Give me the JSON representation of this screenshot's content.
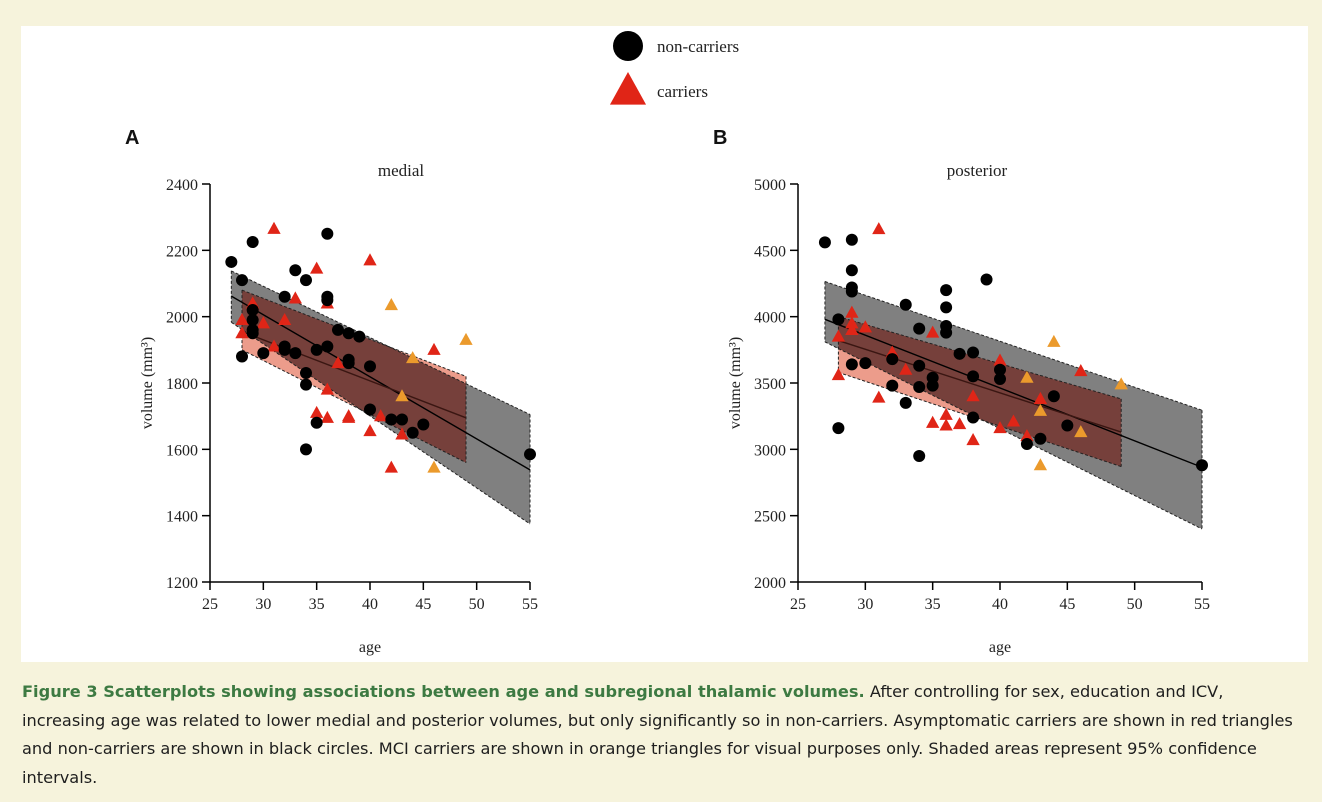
{
  "legend": {
    "items": [
      {
        "label": "non-carriers",
        "marker": "circle",
        "color": "#000000"
      },
      {
        "label": "carriers",
        "marker": "triangle",
        "color": "#e02517"
      }
    ]
  },
  "colors": {
    "non_carrier": "#000000",
    "carrier": "#e02517",
    "mci_carrier": "#eb9a2c",
    "ci_noncarrier": "#808080",
    "ci_carrier": "#ec9c8b",
    "ci_overlap": "#76403b",
    "caption_title": "#3d7a42"
  },
  "caption": {
    "title": "Figure 3 Scatterplots showing associations between age and subregional thalamic volumes.",
    "body": " After controlling for sex, education and ICV, increasing age was related to lower medial and posterior volumes, but only significantly so in non-carriers. Asymptomatic carriers are shown in red triangles and non-carriers are shown in black circles. MCI carriers are shown in orange triangles for visual purposes only. Shaded areas represent 95% confidence intervals."
  },
  "chart_data": [
    {
      "type": "scatter",
      "panel_label": "A",
      "title": "medial",
      "xlabel": "age",
      "ylabel": "volume (mm³)",
      "xlim": [
        25,
        55
      ],
      "ylim": [
        1200,
        2400
      ],
      "xticks": [
        25,
        30,
        35,
        40,
        45,
        50,
        55
      ],
      "yticks": [
        1200,
        1400,
        1600,
        1800,
        2000,
        2200,
        2400
      ],
      "series": [
        {
          "name": "non-carriers",
          "marker": "circle",
          "points": [
            [
              27,
              2165
            ],
            [
              28,
              2110
            ],
            [
              28,
              1880
            ],
            [
              29,
              2225
            ],
            [
              29,
              2020
            ],
            [
              29,
              1990
            ],
            [
              29,
              1960
            ],
            [
              29,
              1950
            ],
            [
              30,
              1890
            ],
            [
              32,
              2060
            ],
            [
              32,
              1910
            ],
            [
              32,
              1900
            ],
            [
              33,
              2140
            ],
            [
              33,
              1890
            ],
            [
              34,
              2110
            ],
            [
              34,
              1830
            ],
            [
              34,
              1795
            ],
            [
              34,
              1600
            ],
            [
              35,
              1900
            ],
            [
              35,
              1680
            ],
            [
              36,
              2250
            ],
            [
              36,
              2060
            ],
            [
              36,
              2050
            ],
            [
              36,
              1910
            ],
            [
              37,
              1960
            ],
            [
              38,
              1950
            ],
            [
              38,
              1870
            ],
            [
              38,
              1860
            ],
            [
              39,
              1940
            ],
            [
              40,
              1850
            ],
            [
              40,
              1720
            ],
            [
              42,
              1690
            ],
            [
              43,
              1690
            ],
            [
              44,
              1650
            ],
            [
              45,
              1675
            ],
            [
              55,
              1585
            ]
          ],
          "fit": {
            "x": [
              27,
              55
            ],
            "y": [
              2062,
              1538
            ]
          },
          "ci": {
            "x": [
              27,
              55
            ],
            "upper": [
              2138,
              1705
            ],
            "lower": [
              1983,
              1375
            ]
          }
        },
        {
          "name": "carriers",
          "marker": "triangle",
          "points": [
            [
              28,
              1990
            ],
            [
              28,
              1950
            ],
            [
              29,
              2040
            ],
            [
              30,
              1980
            ],
            [
              31,
              2265
            ],
            [
              31,
              1910
            ],
            [
              32,
              1990
            ],
            [
              33,
              2055
            ],
            [
              35,
              2145
            ],
            [
              35,
              1710
            ],
            [
              36,
              2040
            ],
            [
              36,
              1780
            ],
            [
              36,
              1695
            ],
            [
              37,
              1860
            ],
            [
              38,
              1700
            ],
            [
              38,
              1695
            ],
            [
              40,
              2170
            ],
            [
              40,
              1655
            ],
            [
              41,
              1700
            ],
            [
              42,
              1545
            ],
            [
              43,
              1645
            ],
            [
              46,
              1900
            ]
          ],
          "fit": {
            "x": [
              28,
              49
            ],
            "y": [
              1955,
              1695
            ]
          },
          "ci": {
            "x": [
              28,
              49
            ],
            "upper": [
              2080,
              1820
            ],
            "lower": [
              1900,
              1560
            ]
          }
        },
        {
          "name": "MCI carriers",
          "marker": "triangle",
          "points": [
            [
              42,
              2035
            ],
            [
              43,
              1760
            ],
            [
              44,
              1875
            ],
            [
              46,
              1545
            ],
            [
              49,
              1930
            ]
          ]
        }
      ]
    },
    {
      "type": "scatter",
      "panel_label": "B",
      "title": "posterior",
      "xlabel": "age",
      "ylabel": "volume (mm³)",
      "xlim": [
        25,
        55
      ],
      "ylim": [
        2000,
        5000
      ],
      "xticks": [
        25,
        30,
        35,
        40,
        45,
        50,
        55
      ],
      "yticks": [
        2000,
        2500,
        3000,
        3500,
        4000,
        4500,
        5000
      ],
      "series": [
        {
          "name": "non-carriers",
          "marker": "circle",
          "points": [
            [
              27,
              4560
            ],
            [
              28,
              3980
            ],
            [
              28,
              3160
            ],
            [
              29,
              4580
            ],
            [
              29,
              4350
            ],
            [
              29,
              4220
            ],
            [
              29,
              4190
            ],
            [
              29,
              3640
            ],
            [
              30,
              3650
            ],
            [
              32,
              3680
            ],
            [
              32,
              3480
            ],
            [
              33,
              4090
            ],
            [
              33,
              3350
            ],
            [
              34,
              3910
            ],
            [
              34,
              3470
            ],
            [
              34,
              3630
            ],
            [
              34,
              2950
            ],
            [
              35,
              3540
            ],
            [
              35,
              3480
            ],
            [
              36,
              4200
            ],
            [
              36,
              4070
            ],
            [
              36,
              3930
            ],
            [
              36,
              3880
            ],
            [
              37,
              3720
            ],
            [
              38,
              3730
            ],
            [
              38,
              3550
            ],
            [
              38,
              3240
            ],
            [
              39,
              4280
            ],
            [
              40,
              3600
            ],
            [
              40,
              3530
            ],
            [
              42,
              3040
            ],
            [
              43,
              3080
            ],
            [
              44,
              3400
            ],
            [
              45,
              3180
            ],
            [
              55,
              2880
            ]
          ],
          "fit": {
            "x": [
              27,
              55
            ],
            "y": [
              3980,
              2865
            ]
          },
          "ci": {
            "x": [
              27,
              55
            ],
            "upper": [
              4265,
              3295
            ],
            "lower": [
              3810,
              2400
            ]
          }
        },
        {
          "name": "carriers",
          "marker": "triangle",
          "points": [
            [
              28,
              3850
            ],
            [
              28,
              3560
            ],
            [
              29,
              4030
            ],
            [
              29,
              3950
            ],
            [
              29,
              3900
            ],
            [
              30,
              3920
            ],
            [
              31,
              4660
            ],
            [
              31,
              3390
            ],
            [
              32,
              3730
            ],
            [
              33,
              3600
            ],
            [
              35,
              3880
            ],
            [
              35,
              3200
            ],
            [
              36,
              3260
            ],
            [
              36,
              3180
            ],
            [
              37,
              3190
            ],
            [
              38,
              3400
            ],
            [
              38,
              3070
            ],
            [
              40,
              3670
            ],
            [
              40,
              3160
            ],
            [
              41,
              3210
            ],
            [
              42,
              3100
            ],
            [
              43,
              3380
            ],
            [
              46,
              3590
            ]
          ],
          "fit": {
            "x": [
              28,
              49
            ],
            "y": [
              3820,
              3130
            ]
          },
          "ci": {
            "x": [
              28,
              49
            ],
            "upper": [
              4000,
              3380
            ],
            "lower": [
              3580,
              2870
            ]
          }
        },
        {
          "name": "MCI carriers",
          "marker": "triangle",
          "points": [
            [
              42,
              3540
            ],
            [
              43,
              3290
            ],
            [
              43,
              2880
            ],
            [
              44,
              3810
            ],
            [
              46,
              3130
            ],
            [
              49,
              3490
            ]
          ]
        }
      ]
    }
  ]
}
